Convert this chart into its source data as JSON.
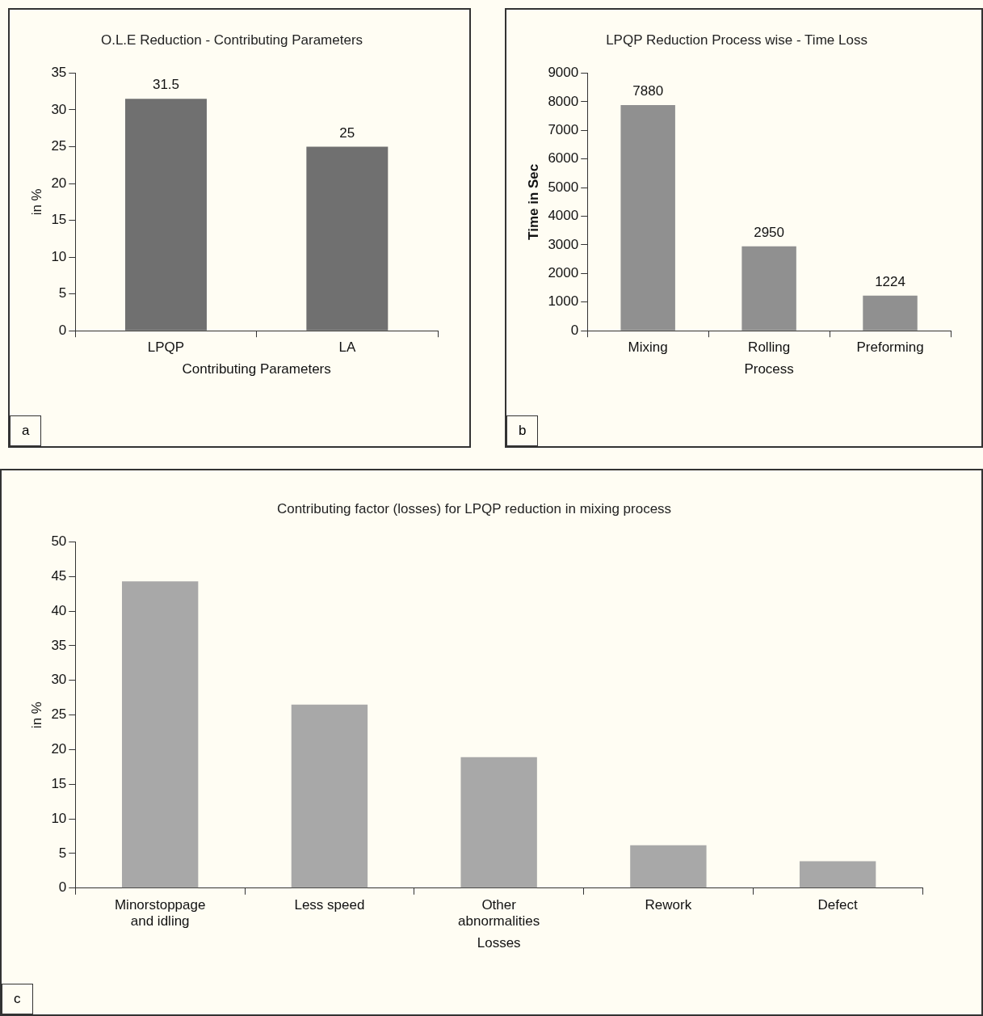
{
  "chart_data": [
    {
      "type": "bar",
      "title": "O.L.E Reduction - Contributing Parameters",
      "xlabel": "Contributing Parameters",
      "ylabel": "in %",
      "categories": [
        "LPQP",
        "LA"
      ],
      "values": [
        31.5,
        25
      ],
      "color": "#707070",
      "ylim": [
        0,
        35
      ],
      "yticks": [
        0,
        5,
        10,
        15,
        20,
        25,
        30,
        35
      ],
      "data_labels": true,
      "legend": false,
      "annotations": [
        "a"
      ]
    },
    {
      "type": "bar",
      "title": "LPQP Reduction Process wise - Time Loss",
      "xlabel": "Process",
      "ylabel": "Time in Sec",
      "categories": [
        "Mixing",
        "Rolling",
        "Preforming"
      ],
      "values": [
        7880,
        2950,
        1224
      ],
      "color": "#909090",
      "ylim": [
        0,
        9000
      ],
      "yticks": [
        0,
        1000,
        2000,
        3000,
        4000,
        5000,
        6000,
        7000,
        8000,
        9000
      ],
      "data_labels": true,
      "legend": false,
      "annotations": [
        "b"
      ]
    },
    {
      "type": "bar",
      "title": "Contributing factor (losses) for LPQP reduction in mixing process",
      "xlabel": "Losses",
      "ylabel": "in %",
      "categories": [
        "Minorstoppage and idling",
        "Less speed",
        "Other abnormalities",
        "Rework",
        "Defect"
      ],
      "values": [
        44.3,
        26.5,
        18.9,
        6.2,
        3.9
      ],
      "color": "#a8a8a8",
      "ylim": [
        0,
        50
      ],
      "yticks": [
        0,
        5,
        10,
        15,
        20,
        25,
        30,
        35,
        40,
        45,
        50
      ],
      "legend": false,
      "annotations": [
        "c"
      ]
    }
  ]
}
